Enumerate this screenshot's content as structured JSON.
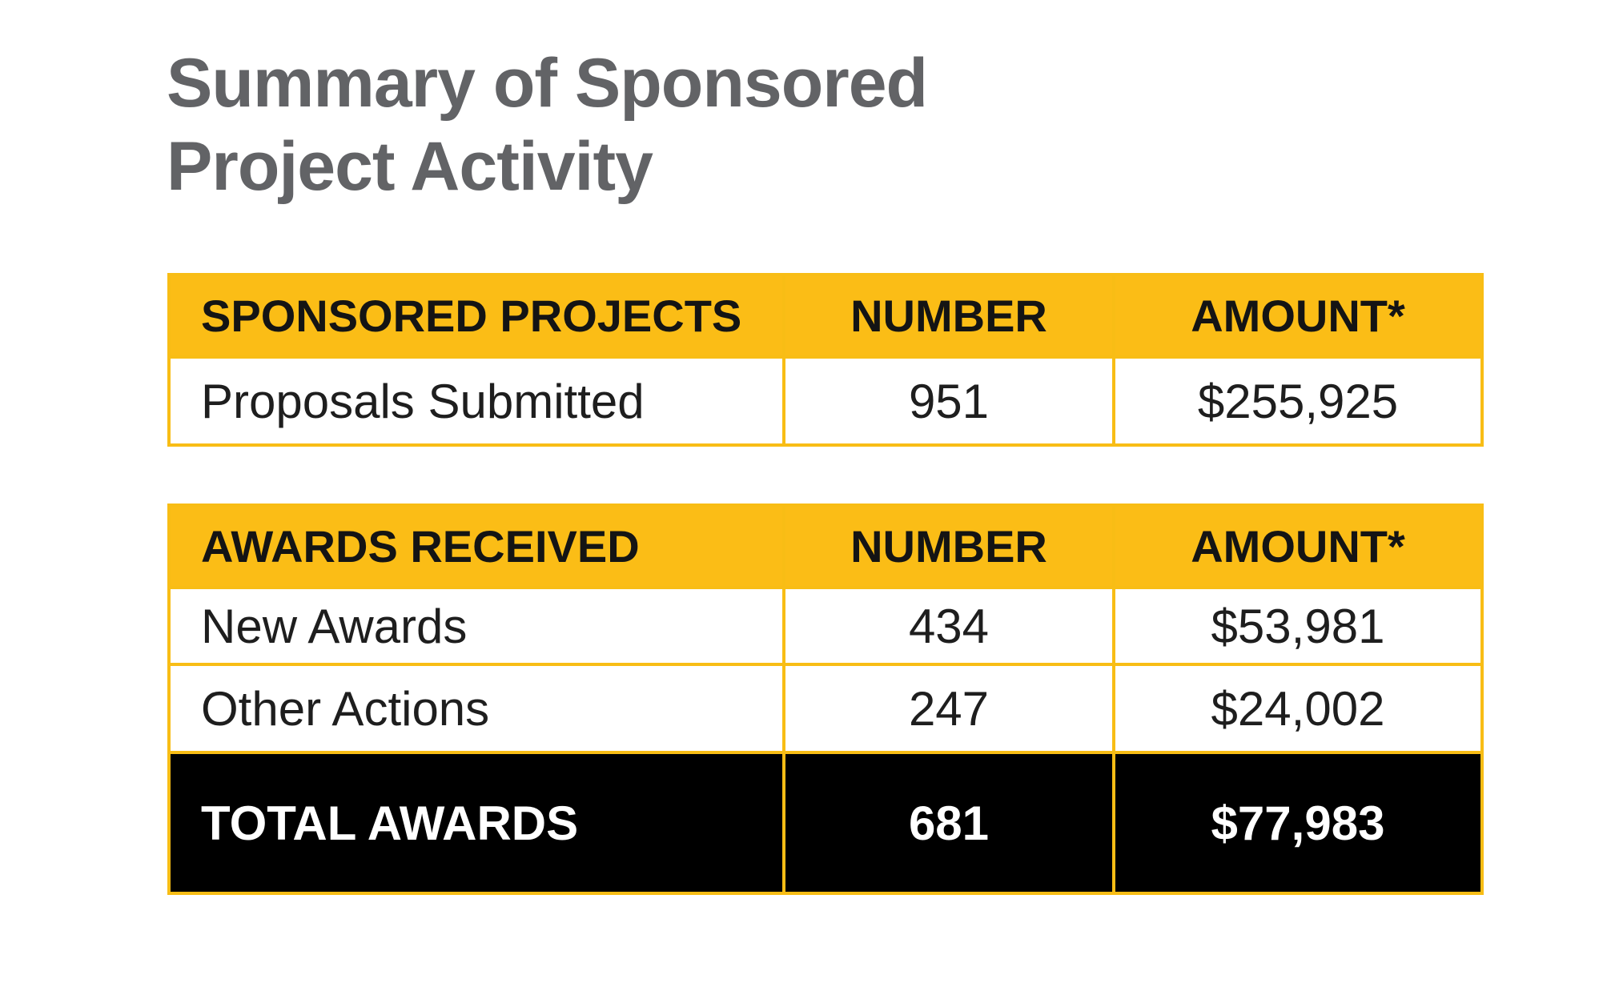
{
  "title": {
    "line1": "Summary of Sponsored",
    "line2": "Project Activity"
  },
  "colors": {
    "header_bg": "#fbbd16",
    "border": "#f8bd15",
    "title": "#626366",
    "total_bg": "#000000"
  },
  "sponsored": {
    "headers": [
      "SPONSORED PROJECTS",
      "NUMBER",
      "AMOUNT*"
    ],
    "rows": [
      [
        "Proposals Submitted",
        "951",
        "$255,925"
      ]
    ]
  },
  "awards": {
    "headers": [
      "AWARDS RECEIVED",
      "NUMBER",
      "AMOUNT*"
    ],
    "rows": [
      [
        "New Awards",
        "434",
        "$53,981"
      ],
      [
        "Other Actions",
        "247",
        "$24,002"
      ]
    ],
    "total": [
      "TOTAL AWARDS",
      "681",
      "$77,983"
    ]
  }
}
